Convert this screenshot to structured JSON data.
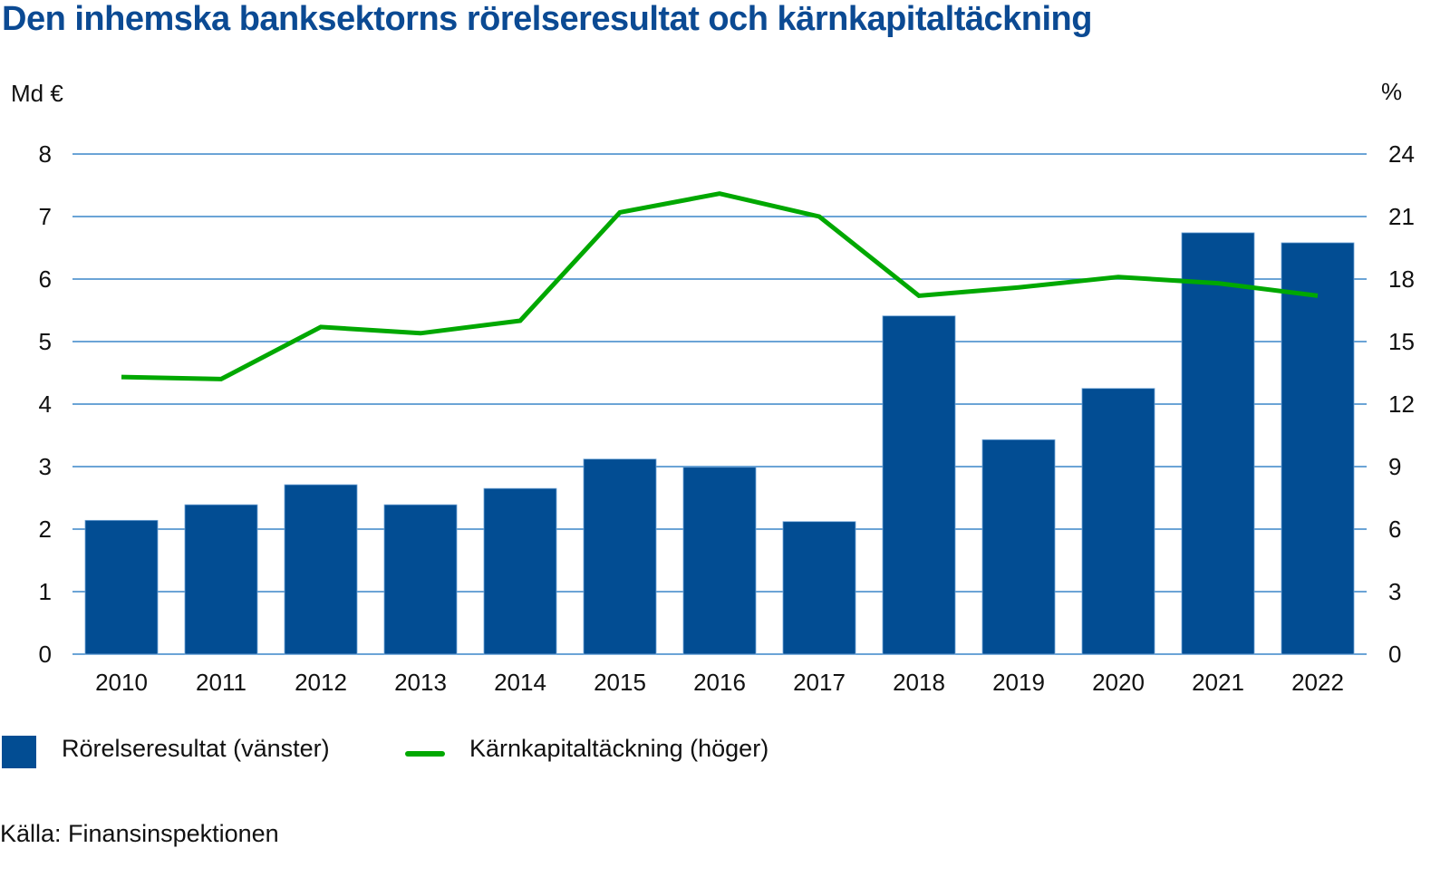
{
  "chart_data": {
    "type": "bar+line",
    "title": "Den inhemska banksektorns rörelseresultat och kärnkapitaltäckning",
    "categories": [
      "2010",
      "2011",
      "2012",
      "2013",
      "2014",
      "2015",
      "2016",
      "2017",
      "2018",
      "2019",
      "2020",
      "2021",
      "2022"
    ],
    "series": [
      {
        "name": "Rörelseresultat (vänster)",
        "type": "bar",
        "axis": "left",
        "color": "#024d93",
        "values": [
          2.14,
          2.39,
          2.71,
          2.39,
          2.65,
          3.12,
          2.99,
          2.12,
          5.41,
          3.43,
          4.25,
          6.74,
          6.58
        ]
      },
      {
        "name": "Kärnkapitaltäckning (höger)",
        "type": "line",
        "axis": "right",
        "color": "#00a800",
        "values": [
          13.3,
          13.2,
          15.7,
          15.4,
          16.0,
          21.2,
          22.1,
          21.0,
          17.2,
          17.6,
          18.1,
          17.8,
          17.2
        ]
      }
    ],
    "left_axis": {
      "label": "Md €",
      "ticks": [
        "0",
        "1",
        "2",
        "3",
        "4",
        "5",
        "6",
        "7",
        "8"
      ],
      "ylim": [
        0,
        8
      ]
    },
    "right_axis": {
      "label": "%",
      "ticks": [
        "0",
        "3",
        "6",
        "9",
        "12",
        "15",
        "18",
        "21",
        "24"
      ],
      "ylim": [
        0,
        24
      ]
    },
    "grid": true,
    "grid_color": "#3a86c8",
    "legend_position": "bottom-left",
    "source": "Källa: Finansinspektionen"
  },
  "header": {
    "title": "Den inhemska banksektorns rörelseresultat och kärnkapitaltäckning"
  },
  "axes": {
    "left_unit": "Md €",
    "right_unit": "%"
  },
  "legend": {
    "bar_label": "Rörelseresultat (vänster)",
    "line_label": "Kärnkapitaltäckning (höger)"
  },
  "footer": {
    "source": "Källa: Finansinspektionen"
  }
}
